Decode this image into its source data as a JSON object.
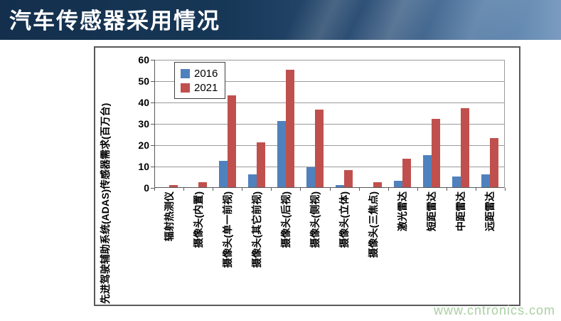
{
  "header": {
    "title": "汽车传感器采用情况"
  },
  "watermark": "www.cntronics.com",
  "colors": {
    "series_2016": "#4F81BD",
    "series_2021": "#C0504D",
    "header_dark": "#132F4D",
    "header_light": "#7B9CC0",
    "gridline": "#9A9A9A",
    "axis": "#595959",
    "watermark_green": "#A9CFA2"
  },
  "chart_data": {
    "type": "bar",
    "title": "",
    "xlabel": "",
    "ylabel": "先进驾驶辅助系统(ADAS)传感器需求(百万台)",
    "ylim": [
      0,
      60
    ],
    "yticks": [
      0,
      10,
      20,
      30,
      40,
      50,
      60
    ],
    "grid": true,
    "legend_position": "top-left-inside",
    "categories": [
      "辐射热测仪",
      "摄像头(内置)",
      "摄像头(单一前视)",
      "摄像头(其它前视)",
      "摄像头(后视)",
      "摄像头(侧视)",
      "摄像头(立体)",
      "摄像头(三焦点)",
      "激光雷达",
      "短距雷达",
      "中距雷达",
      "远距雷达"
    ],
    "series": [
      {
        "name": "2016",
        "color": "#4F81BD",
        "values": [
          0,
          0,
          12.5,
          6,
          31,
          9.5,
          1,
          0,
          3,
          15,
          5,
          6
        ]
      },
      {
        "name": "2021",
        "color": "#C0504D",
        "values": [
          1,
          2.5,
          43,
          21,
          55,
          36.5,
          8,
          2.5,
          13.5,
          32,
          37,
          23
        ]
      }
    ]
  }
}
